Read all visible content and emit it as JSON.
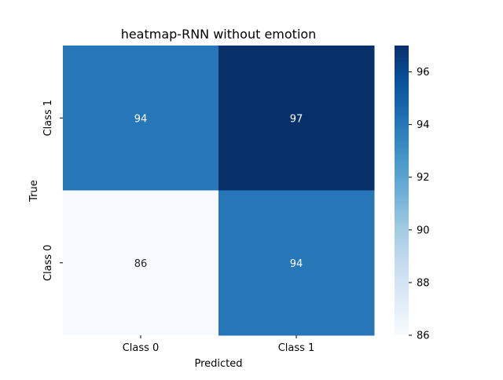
{
  "chart_data": {
    "type": "heatmap",
    "title": "heatmap-RNN without emotion",
    "xlabel": "Predicted",
    "ylabel": "True",
    "x_categories": [
      "Class 0",
      "Class 1"
    ],
    "y_categories": [
      "Class 1",
      "Class 0"
    ],
    "values": [
      [
        94,
        97
      ],
      [
        86,
        94
      ]
    ],
    "annotations": [
      [
        "94",
        "97"
      ],
      [
        "86",
        "94"
      ]
    ],
    "colormap": "Blues",
    "colorbar": {
      "range": [
        86,
        97
      ],
      "ticks": [
        86,
        88,
        90,
        92,
        94,
        96
      ],
      "tick_labels": [
        "86",
        "88",
        "90",
        "92",
        "94",
        "96"
      ]
    },
    "colors": {
      "low": "#f7fbff",
      "mid": "#2b7bba",
      "high": "#08306b",
      "annotation_light": "#ffffff",
      "annotation_dark": "#262626"
    }
  }
}
